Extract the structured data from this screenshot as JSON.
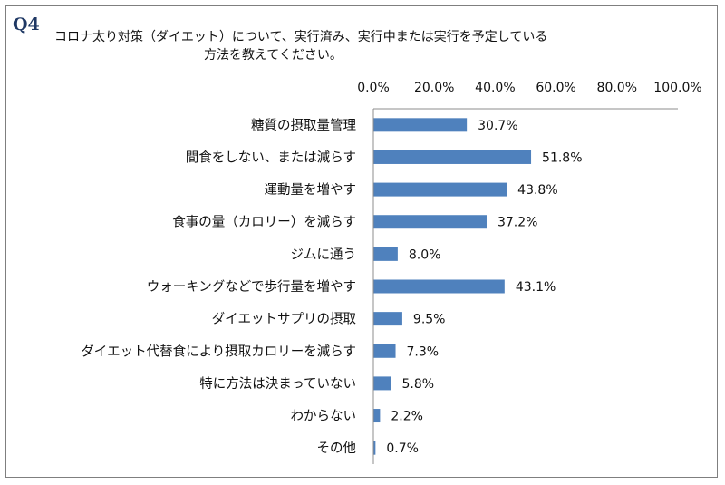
{
  "question": {
    "number": "Q4",
    "line1": "コロナ太り対策（ダイエット）について、実行済み、実行中または実行を予定している",
    "line2": "方法を教えてください。"
  },
  "chart_data": {
    "type": "bar",
    "orientation": "horizontal",
    "title": "",
    "xlabel": "",
    "ylabel": "",
    "xlim": [
      0,
      100
    ],
    "ticks": [
      "0.0%",
      "20.0%",
      "40.0%",
      "60.0%",
      "80.0%",
      "100.0%"
    ],
    "tick_values": [
      0,
      20,
      40,
      60,
      80,
      100
    ],
    "grid": false,
    "legend": "none",
    "bar_color": "#4f81bd",
    "categories": [
      "糖質の摂取量管理",
      "間食をしない、または減らす",
      "運動量を増やす",
      "食事の量（カロリー）を減らす",
      "ジムに通う",
      "ウォーキングなどで歩行量を増やす",
      "ダイエットサプリの摂取",
      "ダイエット代替食により摂取カロリーを減らす",
      "特に方法は決まっていない",
      "わからない",
      "その他"
    ],
    "values": [
      30.7,
      51.8,
      43.8,
      37.2,
      8.0,
      43.1,
      9.5,
      7.3,
      5.8,
      2.2,
      0.7
    ],
    "value_labels": [
      "30.7%",
      "51.8%",
      "43.8%",
      "37.2%",
      "8.0%",
      "43.1%",
      "9.5%",
      "7.3%",
      "5.8%",
      "2.2%",
      "0.7%"
    ]
  }
}
